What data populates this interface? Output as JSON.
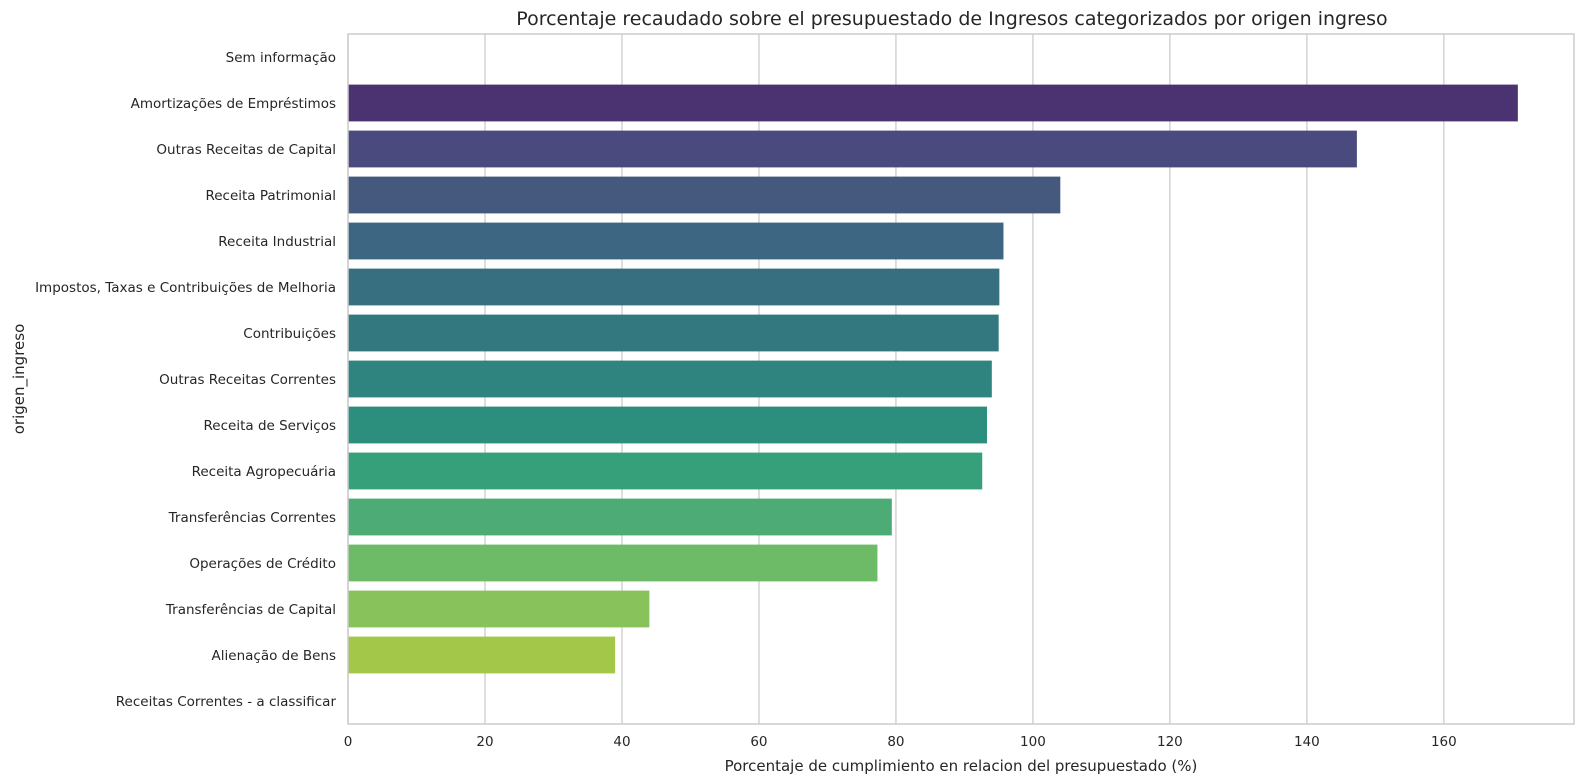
{
  "chart_data": {
    "type": "bar",
    "orientation": "horizontal",
    "title": "Porcentaje recaudado sobre el presupuestado de Ingresos categorizados por origen ingreso",
    "xlabel": "Porcentaje de cumplimiento en relacion del presupuestado (%)",
    "ylabel": "origen_ingreso",
    "xlim": [
      0,
      179
    ],
    "xticks": [
      0,
      20,
      40,
      60,
      80,
      100,
      120,
      140,
      160
    ],
    "grid": "vertical",
    "legend": "none",
    "categories": [
      "Sem informação",
      "Amortizações de Empréstimos",
      "Outras Receitas de Capital",
      "Receita Patrimonial",
      "Receita Industrial",
      "Impostos, Taxas e Contribuições de Melhoria",
      "Contribuições",
      "Outras Receitas Correntes",
      "Receita de Serviços",
      "Receita Agropecuária",
      "Transferências Correntes",
      "Operações de Crédito",
      "Transferências de Capital",
      "Alienação de Bens",
      "Receitas Correntes - a classificar"
    ],
    "values": [
      0,
      170.8,
      147.3,
      104.0,
      95.7,
      95.1,
      95.0,
      94.0,
      93.3,
      92.6,
      79.4,
      77.3,
      44.0,
      39.0,
      0
    ],
    "colors": [
      "#440154",
      "#4a3370",
      "#4a4a7f",
      "#45597f",
      "#3d6683",
      "#386f80",
      "#33787f",
      "#2f847f",
      "#2c8f7e",
      "#36a07a",
      "#4dac75",
      "#6dbb67",
      "#87c35a",
      "#a3c749",
      "#c0d13b"
    ]
  }
}
